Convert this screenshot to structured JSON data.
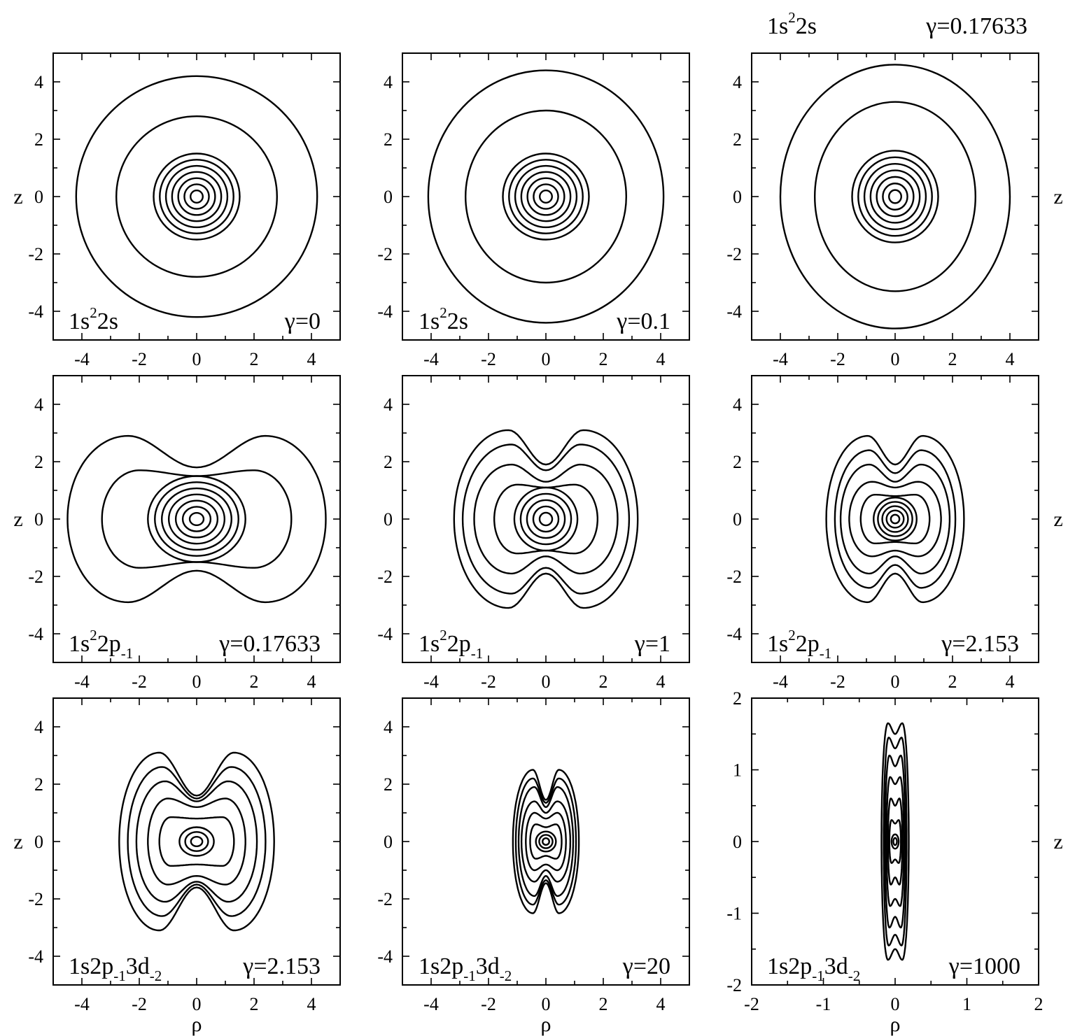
{
  "chart_data": [
    {
      "type": "contour",
      "state": [
        "1s",
        "2",
        "2s",
        ""
      ],
      "gamma_label": "γ=0",
      "xlabel": "",
      "ylabel": "z",
      "xlim": [
        -5,
        5
      ],
      "ylim": [
        -5,
        5
      ],
      "xticks": [
        "-4",
        "-2",
        "0",
        "2",
        "4"
      ],
      "yticks": [
        "4",
        "2",
        "0",
        "-2",
        "-4"
      ],
      "shape": "ellipse",
      "rx_inner_max": 1.5,
      "rz_inner_max": 1.5,
      "inner_count": 7,
      "outer": [
        {
          "rho": 2.8,
          "z": 2.8
        },
        {
          "rho": 4.2,
          "z": 4.2
        }
      ]
    },
    {
      "type": "contour",
      "state": [
        "1s",
        "2",
        "2s",
        ""
      ],
      "gamma_label": "γ=0.1",
      "xlabel": "",
      "ylabel": "",
      "xlim": [
        -5,
        5
      ],
      "ylim": [
        -5,
        5
      ],
      "xticks": [
        "-4",
        "-2",
        "0",
        "2",
        "4"
      ],
      "yticks": [
        "4",
        "2",
        "0",
        "-2",
        "-4"
      ],
      "shape": "ellipse",
      "rx_inner_max": 1.5,
      "rz_inner_max": 1.5,
      "inner_count": 7,
      "outer": [
        {
          "rho": 2.8,
          "z": 3.0
        },
        {
          "rho": 4.1,
          "z": 4.4
        }
      ]
    },
    {
      "type": "contour",
      "state": [
        "1s",
        "2",
        "2s",
        ""
      ],
      "gamma_label": "γ=0.17633",
      "xlabel": "",
      "ylabel": "z",
      "xlim": [
        -5,
        5
      ],
      "ylim": [
        -5,
        5
      ],
      "xticks": [
        "-4",
        "-2",
        "0",
        "2",
        "4"
      ],
      "yticks": [
        "4",
        "2",
        "0",
        "-2",
        "-4"
      ],
      "shape": "ellipse",
      "rx_inner_max": 1.5,
      "rz_inner_max": 1.6,
      "inner_count": 7,
      "outer": [
        {
          "rho": 2.8,
          "z": 3.3
        },
        {
          "rho": 4.0,
          "z": 4.6
        }
      ]
    },
    {
      "type": "contour",
      "state": [
        "1s",
        "2",
        "2p",
        "-1"
      ],
      "gamma_label": "γ=0.17633",
      "xlabel": "",
      "ylabel": "z",
      "xlim": [
        -5,
        5
      ],
      "ylim": [
        -5,
        5
      ],
      "xticks": [
        "-4",
        "-2",
        "0",
        "2",
        "4"
      ],
      "yticks": [
        "4",
        "2",
        "0",
        "-2",
        "-4"
      ],
      "shape": "mixed",
      "inner": {
        "count": 7,
        "rho_max": 1.7,
        "z_max": 1.5
      },
      "lobes": [
        {
          "rho_max": 3.3,
          "z_peak": 1.7,
          "z_dip": 1.5,
          "rho_peak": 2.0
        },
        {
          "rho_max": 4.5,
          "z_peak": 2.9,
          "z_dip": 1.8,
          "rho_peak": 2.4
        }
      ]
    },
    {
      "type": "contour",
      "state": [
        "1s",
        "2",
        "2p",
        "-1"
      ],
      "gamma_label": "γ=1",
      "xlabel": "",
      "ylabel": "",
      "xlim": [
        -5,
        5
      ],
      "ylim": [
        -5,
        5
      ],
      "xticks": [
        "-4",
        "-2",
        "0",
        "2",
        "4"
      ],
      "yticks": [
        "4",
        "2",
        "0",
        "-2",
        "-4"
      ],
      "shape": "mixed",
      "inner": {
        "count": 5,
        "rho_max": 1.1,
        "z_max": 1.1
      },
      "lobes": [
        {
          "rho_max": 1.8,
          "z_peak": 1.2,
          "z_dip": 1.1,
          "rho_peak": 1.0
        },
        {
          "rho_max": 2.5,
          "z_peak": 1.9,
          "z_dip": 1.3,
          "rho_peak": 1.2
        },
        {
          "rho_max": 2.9,
          "z_peak": 2.6,
          "z_dip": 1.7,
          "rho_peak": 1.2
        },
        {
          "rho_max": 3.2,
          "z_peak": 3.1,
          "z_dip": 1.9,
          "rho_peak": 1.3
        }
      ]
    },
    {
      "type": "contour",
      "state": [
        "1s",
        "2",
        "2p",
        "-1"
      ],
      "gamma_label": "γ=2.153",
      "xlabel": "",
      "ylabel": "z",
      "xlim": [
        -5,
        5
      ],
      "ylim": [
        -5,
        5
      ],
      "xticks": [
        "-4",
        "-2",
        "0",
        "2",
        "4"
      ],
      "yticks": [
        "4",
        "2",
        "0",
        "-2",
        "-4"
      ],
      "shape": "mixed",
      "inner": {
        "count": 5,
        "rho_max": 0.75,
        "z_max": 0.75
      },
      "lobes": [
        {
          "rho_max": 1.2,
          "z_peak": 0.85,
          "z_dip": 0.8,
          "rho_peak": 0.7
        },
        {
          "rho_max": 1.6,
          "z_peak": 1.3,
          "z_dip": 1.1,
          "rho_peak": 0.8
        },
        {
          "rho_max": 1.9,
          "z_peak": 1.9,
          "z_dip": 1.3,
          "rho_peak": 0.9
        },
        {
          "rho_max": 2.1,
          "z_peak": 2.4,
          "z_dip": 1.6,
          "rho_peak": 0.9
        },
        {
          "rho_max": 2.4,
          "z_peak": 2.9,
          "z_dip": 1.9,
          "rho_peak": 0.95
        }
      ]
    },
    {
      "type": "contour",
      "state": [
        "1s2p",
        "-1",
        "3d",
        "-2"
      ],
      "gamma_label": "γ=2.153",
      "xlabel": "ρ",
      "ylabel": "z",
      "xlim": [
        -5,
        5
      ],
      "ylim": [
        -5,
        5
      ],
      "xticks": [
        "-4",
        "-2",
        "0",
        "2",
        "4"
      ],
      "yticks": [
        "4",
        "2",
        "0",
        "-2",
        "-4"
      ],
      "shape": "mixed",
      "inner": {
        "count": 3,
        "rho_max": 0.6,
        "z_max": 0.5
      },
      "lobes": [
        {
          "rho_max": 1.3,
          "z_peak": 0.85,
          "z_dip": 0.8,
          "rho_peak": 0.9
        },
        {
          "rho_max": 1.7,
          "z_peak": 1.5,
          "z_dip": 1.2,
          "rho_peak": 1.0
        },
        {
          "rho_max": 2.1,
          "z_peak": 2.1,
          "z_dip": 1.4,
          "rho_peak": 1.1
        },
        {
          "rho_max": 2.4,
          "z_peak": 2.6,
          "z_dip": 1.5,
          "rho_peak": 1.2
        },
        {
          "rho_max": 2.7,
          "z_peak": 3.1,
          "z_dip": 1.6,
          "rho_peak": 1.3
        }
      ]
    },
    {
      "type": "contour",
      "state": [
        "1s2p",
        "-1",
        "3d",
        "-2"
      ],
      "gamma_label": "γ=20",
      "xlabel": "ρ",
      "ylabel": "",
      "xlim": [
        -5,
        5
      ],
      "ylim": [
        -5,
        5
      ],
      "xticks": [
        "-4",
        "-2",
        "0",
        "2",
        "4"
      ],
      "yticks": [
        "4",
        "2",
        "0",
        "-2",
        "-4"
      ],
      "shape": "mixed",
      "inner": {
        "count": 3,
        "rho_max": 0.35,
        "z_max": 0.35
      },
      "lobes": [
        {
          "rho_max": 0.55,
          "z_peak": 0.6,
          "z_dip": 0.5,
          "rho_peak": 0.35
        },
        {
          "rho_max": 0.7,
          "z_peak": 1.0,
          "z_dip": 0.8,
          "rho_peak": 0.4
        },
        {
          "rho_max": 0.85,
          "z_peak": 1.4,
          "z_dip": 1.0,
          "rho_peak": 0.4
        },
        {
          "rho_max": 0.95,
          "z_peak": 1.9,
          "z_dip": 1.2,
          "rho_peak": 0.4
        },
        {
          "rho_max": 1.05,
          "z_peak": 2.2,
          "z_dip": 1.35,
          "rho_peak": 0.45
        },
        {
          "rho_max": 1.15,
          "z_peak": 2.5,
          "z_dip": 1.45,
          "rho_peak": 0.45
        }
      ]
    },
    {
      "type": "contour",
      "state": [
        "1s2p",
        "-1",
        "3d",
        "-2"
      ],
      "gamma_label": "γ=1000",
      "xlabel": "ρ",
      "ylabel": "z",
      "xlim": [
        -2,
        2
      ],
      "ylim": [
        -2,
        2
      ],
      "xticks": [
        "-2",
        "-1",
        "0",
        "1",
        "2"
      ],
      "yticks": [
        "2",
        "1",
        "0",
        "-1",
        "-2"
      ],
      "shape": "mixed",
      "inner": {
        "count": 2,
        "rho_max": 0.05,
        "z_max": 0.1
      },
      "lobes": [
        {
          "rho_max": 0.08,
          "z_peak": 0.3,
          "z_dip": 0.25,
          "rho_peak": 0.05
        },
        {
          "rho_max": 0.1,
          "z_peak": 0.6,
          "z_dip": 0.5,
          "rho_peak": 0.06
        },
        {
          "rho_max": 0.12,
          "z_peak": 0.9,
          "z_dip": 0.8,
          "rho_peak": 0.07
        },
        {
          "rho_max": 0.14,
          "z_peak": 1.2,
          "z_dip": 1.05,
          "rho_peak": 0.08
        },
        {
          "rho_max": 0.16,
          "z_peak": 1.45,
          "z_dip": 1.3,
          "rho_peak": 0.09
        },
        {
          "rho_max": 0.19,
          "z_peak": 1.65,
          "z_dip": 1.5,
          "rho_peak": 0.1
        }
      ]
    }
  ]
}
